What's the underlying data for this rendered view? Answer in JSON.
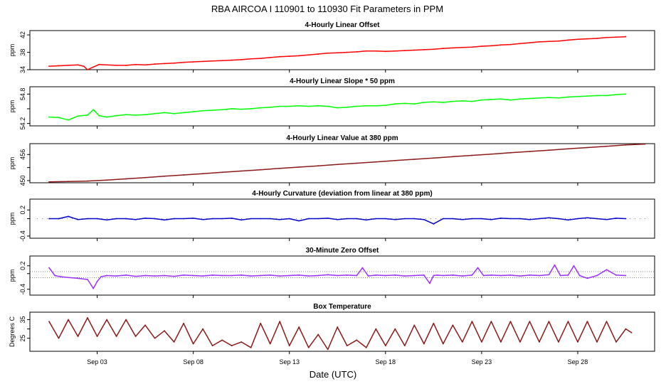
{
  "title": "RBA   AIRCOA I   110901 to 110930   Fit Parameters in PPM",
  "x_axis": {
    "label": "Date (UTC)",
    "range_days": [
      -1,
      31.5
    ],
    "ticks": [
      {
        "day": 2.5,
        "label": "Sep 03"
      },
      {
        "day": 7.5,
        "label": "Sep 08"
      },
      {
        "day": 12.5,
        "label": "Sep 13"
      },
      {
        "day": 17.5,
        "label": "Sep 18"
      },
      {
        "day": 22.5,
        "label": "Sep 23"
      },
      {
        "day": 27.5,
        "label": "Sep 28"
      }
    ]
  },
  "chart_data": [
    {
      "type": "line",
      "title": "4-Hourly Linear Offset",
      "ylabel": "ppm",
      "ylim": [
        34,
        43
      ],
      "yticks": [
        34,
        38,
        42
      ],
      "color": "#ff0000",
      "series": [
        {
          "x": [
            0.0,
            0.5,
            1.0,
            1.5,
            1.8,
            2.0,
            2.3,
            2.6,
            3.0,
            3.5,
            4.0,
            4.5,
            5.0,
            5.5,
            6.0,
            6.5,
            7.0,
            7.5,
            8.0,
            8.5,
            9.0,
            9.5,
            10.0,
            10.5,
            11.0,
            11.5,
            12.0,
            12.5,
            13.0,
            13.5,
            14.0,
            14.5,
            15.0,
            15.5,
            16.0,
            16.5,
            17.0,
            17.5,
            18.0,
            18.5,
            19.0,
            19.5,
            20.0,
            20.5,
            21.0,
            21.5,
            22.0,
            22.5,
            23.0,
            23.5,
            24.0,
            24.5,
            25.0,
            25.5,
            26.0,
            26.5,
            27.0,
            27.5,
            28.0,
            28.5,
            29.0,
            29.5,
            30.0
          ],
          "y": [
            34.8,
            34.9,
            35.0,
            35.1,
            34.8,
            34.0,
            34.6,
            35.2,
            35.1,
            35.0,
            35.0,
            35.2,
            35.1,
            35.3,
            35.4,
            35.5,
            35.7,
            35.8,
            35.9,
            36.0,
            36.1,
            36.2,
            36.3,
            36.5,
            36.6,
            36.8,
            37.0,
            37.1,
            37.2,
            37.4,
            37.6,
            37.8,
            37.9,
            38.0,
            38.1,
            38.3,
            38.3,
            38.2,
            38.3,
            38.4,
            38.5,
            38.6,
            38.7,
            38.9,
            39.0,
            39.1,
            39.2,
            39.4,
            39.5,
            39.7,
            39.8,
            40.0,
            40.2,
            40.4,
            40.5,
            40.6,
            40.8,
            41.0,
            41.1,
            41.2,
            41.4,
            41.5,
            41.6
          ]
        }
      ]
    },
    {
      "type": "line",
      "title": "4-Hourly Linear Slope * 50 ppm",
      "ylabel": "ppm",
      "ylim": [
        54.15,
        54.95
      ],
      "yticks": [
        54.2,
        54.5,
        54.8
      ],
      "ytick_labels": [
        "54.2",
        "",
        "54.8"
      ],
      "color": "#00ff00",
      "series": [
        {
          "x": [
            0.0,
            0.5,
            1.0,
            1.5,
            2.0,
            2.3,
            2.6,
            3.0,
            3.5,
            4.0,
            4.5,
            5.0,
            5.5,
            6.0,
            6.5,
            7.0,
            7.5,
            8.0,
            8.5,
            9.0,
            9.5,
            10.0,
            10.5,
            11.0,
            11.5,
            12.0,
            12.5,
            13.0,
            13.5,
            14.0,
            14.5,
            15.0,
            15.5,
            16.0,
            16.5,
            17.0,
            17.5,
            18.0,
            18.5,
            19.0,
            19.5,
            20.0,
            20.5,
            21.0,
            21.5,
            22.0,
            22.5,
            23.0,
            23.5,
            24.0,
            24.5,
            25.0,
            25.5,
            26.0,
            26.5,
            27.0,
            27.5,
            28.0,
            28.5,
            29.0,
            29.5,
            30.0
          ],
          "y": [
            54.33,
            54.32,
            54.27,
            54.35,
            54.37,
            54.48,
            54.36,
            54.33,
            54.36,
            54.38,
            54.37,
            54.38,
            54.4,
            54.42,
            54.4,
            54.42,
            54.44,
            54.46,
            54.47,
            54.48,
            54.5,
            54.49,
            54.5,
            54.52,
            54.53,
            54.55,
            54.55,
            54.56,
            54.55,
            54.56,
            54.55,
            54.52,
            54.53,
            54.55,
            54.56,
            54.56,
            54.57,
            54.6,
            54.61,
            54.6,
            54.63,
            54.64,
            54.63,
            54.65,
            54.66,
            54.65,
            54.68,
            54.69,
            54.7,
            54.68,
            54.7,
            54.71,
            54.72,
            54.73,
            54.72,
            54.74,
            54.75,
            54.76,
            54.77,
            54.77,
            54.79,
            54.8
          ]
        }
      ]
    },
    {
      "type": "line",
      "title": "4-Hourly Linear Value at 380 ppm",
      "ylabel": "ppm",
      "ylim": [
        449.5,
        458.5
      ],
      "yticks": [
        450,
        453,
        456
      ],
      "ytick_labels": [
        "450",
        "",
        "456"
      ],
      "color": "#8b1a1a",
      "series": [
        {
          "x": [
            0,
            1,
            2,
            3,
            4,
            5,
            6,
            7,
            8,
            9,
            10,
            11,
            12,
            13,
            14,
            15,
            16,
            17,
            18,
            19,
            20,
            21,
            22,
            23,
            24,
            25,
            26,
            27,
            28,
            29,
            30,
            31
          ],
          "y": [
            449.7,
            449.8,
            449.9,
            450.1,
            450.4,
            450.7,
            451.0,
            451.3,
            451.6,
            451.9,
            452.2,
            452.5,
            452.8,
            453.1,
            453.4,
            453.7,
            454.0,
            454.3,
            454.6,
            454.9,
            455.2,
            455.5,
            455.8,
            456.1,
            456.4,
            456.7,
            457.0,
            457.3,
            457.6,
            457.9,
            458.2,
            458.4
          ]
        }
      ]
    },
    {
      "type": "line",
      "title": "4-Hourly Curvature (deviation from linear at 380 ppm)",
      "ylabel": "ppm",
      "ylim": [
        -0.45,
        0.45
      ],
      "yticks": [
        -0.4,
        0.0,
        0.2
      ],
      "ytick_labels": [
        "-0.4",
        "",
        "0.2"
      ],
      "color": "#0000cd",
      "series": [
        {
          "x": [
            0.0,
            0.5,
            1.0,
            1.5,
            2.0,
            2.5,
            3.0,
            3.5,
            4.0,
            4.5,
            5.0,
            5.5,
            6.0,
            6.5,
            7.0,
            7.5,
            8.0,
            8.5,
            9.0,
            9.5,
            10.0,
            10.5,
            11.0,
            11.5,
            12.0,
            12.5,
            13.0,
            13.5,
            14.0,
            14.5,
            15.0,
            15.5,
            16.0,
            16.5,
            17.0,
            17.5,
            18.0,
            18.5,
            19.0,
            19.5,
            20.0,
            20.5,
            21.0,
            21.5,
            22.0,
            22.5,
            23.0,
            23.5,
            24.0,
            24.5,
            25.0,
            25.5,
            26.0,
            26.5,
            27.0,
            27.5,
            28.0,
            28.5,
            29.0,
            29.5,
            30.0
          ],
          "y": [
            0.0,
            0.0,
            0.05,
            -0.02,
            0.0,
            0.0,
            -0.03,
            0.0,
            0.0,
            -0.02,
            0.01,
            0.0,
            -0.03,
            0.0,
            0.0,
            0.01,
            -0.02,
            0.0,
            0.0,
            0.01,
            -0.03,
            0.0,
            0.0,
            0.0,
            -0.02,
            0.0,
            -0.05,
            0.0,
            0.0,
            0.01,
            -0.02,
            0.0,
            0.0,
            -0.03,
            0.0,
            0.0,
            -0.02,
            0.0,
            0.0,
            -0.02,
            -0.12,
            0.0,
            0.0,
            -0.02,
            0.0,
            0.0,
            -0.02,
            0.01,
            0.0,
            0.0,
            -0.02,
            0.0,
            0.02,
            0.0,
            -0.03,
            0.0,
            0.02,
            0.0,
            -0.02,
            0.01,
            0.0
          ]
        }
      ],
      "dotted_baseline": 0.0
    },
    {
      "type": "line",
      "title": "30-Minute Zero Offset",
      "ylabel": "ppm",
      "ylim": [
        -0.55,
        0.45
      ],
      "yticks": [
        -0.4,
        0.0,
        0.2
      ],
      "ytick_labels": [
        "-0.4",
        "",
        "0.2"
      ],
      "color": "#9b30ff",
      "reference_lines": [
        0.05,
        -0.1
      ],
      "series": [
        {
          "x": [
            0.0,
            0.3,
            0.6,
            1.0,
            1.5,
            2.0,
            2.3,
            2.5,
            2.7,
            3.0,
            3.5,
            4.0,
            4.5,
            5.0,
            5.5,
            6.0,
            6.5,
            7.0,
            7.5,
            8.0,
            8.5,
            9.0,
            9.5,
            10.0,
            10.5,
            11.0,
            11.5,
            12.0,
            12.5,
            13.0,
            13.5,
            14.0,
            14.5,
            15.0,
            15.5,
            16.0,
            16.3,
            16.6,
            17.0,
            17.5,
            18.0,
            18.5,
            19.0,
            19.5,
            19.8,
            20.0,
            20.2,
            20.5,
            21.0,
            21.5,
            22.0,
            22.3,
            22.6,
            23.0,
            23.5,
            24.0,
            24.5,
            25.0,
            25.5,
            26.0,
            26.3,
            26.6,
            27.0,
            27.3,
            27.6,
            28.0,
            28.5,
            29.0,
            29.5,
            30.0
          ],
          "y": [
            0.15,
            -0.05,
            -0.08,
            -0.1,
            -0.12,
            -0.15,
            -0.38,
            -0.2,
            -0.08,
            -0.05,
            -0.06,
            -0.04,
            -0.07,
            -0.05,
            -0.06,
            -0.05,
            -0.07,
            -0.04,
            -0.05,
            -0.06,
            -0.04,
            -0.05,
            -0.05,
            -0.04,
            -0.06,
            -0.05,
            -0.04,
            -0.06,
            -0.05,
            -0.04,
            -0.06,
            -0.05,
            -0.03,
            -0.05,
            -0.04,
            -0.05,
            0.15,
            -0.06,
            -0.04,
            -0.05,
            -0.04,
            -0.06,
            -0.05,
            -0.04,
            -0.25,
            -0.05,
            -0.04,
            -0.05,
            -0.04,
            -0.06,
            -0.04,
            0.15,
            -0.05,
            -0.04,
            -0.05,
            -0.04,
            -0.06,
            -0.04,
            -0.05,
            -0.03,
            0.22,
            -0.05,
            -0.04,
            0.2,
            -0.05,
            -0.12,
            -0.05,
            0.1,
            -0.04,
            -0.05
          ]
        }
      ]
    },
    {
      "type": "line",
      "title": "Box Temperature",
      "ylabel": "Degrees C",
      "ylim": [
        18,
        39
      ],
      "yticks": [
        25,
        30,
        35
      ],
      "ytick_labels": [
        "25",
        "",
        "35"
      ],
      "color": "#8b1a1a",
      "series": [
        {
          "x": [
            0.0,
            0.5,
            1.0,
            1.5,
            2.0,
            2.5,
            3.0,
            3.5,
            4.0,
            4.5,
            5.0,
            5.5,
            6.0,
            6.5,
            7.0,
            7.5,
            8.0,
            8.5,
            9.0,
            9.5,
            10.0,
            10.5,
            11.0,
            11.5,
            12.0,
            12.5,
            13.0,
            13.5,
            14.0,
            14.5,
            15.0,
            15.5,
            16.0,
            16.5,
            17.0,
            17.5,
            18.0,
            18.5,
            19.0,
            19.5,
            20.0,
            20.5,
            21.0,
            21.5,
            22.0,
            22.5,
            23.0,
            23.5,
            24.0,
            24.5,
            25.0,
            25.5,
            26.0,
            26.5,
            27.0,
            27.5,
            28.0,
            28.5,
            29.0,
            29.5,
            30.0,
            30.3
          ],
          "y": [
            34,
            25,
            35,
            26,
            36,
            26,
            35,
            26,
            35,
            26,
            32,
            25,
            29,
            23,
            33,
            22,
            30,
            21,
            24,
            21,
            23,
            20,
            33,
            22,
            34,
            21,
            31,
            20,
            27,
            19,
            31,
            21,
            24,
            20,
            30,
            21,
            30,
            21,
            32,
            22,
            33,
            22,
            32,
            23,
            34,
            23,
            34,
            23,
            34,
            23,
            34,
            23,
            34,
            23,
            34,
            23,
            34,
            23,
            34,
            23,
            30,
            28
          ]
        }
      ]
    }
  ]
}
